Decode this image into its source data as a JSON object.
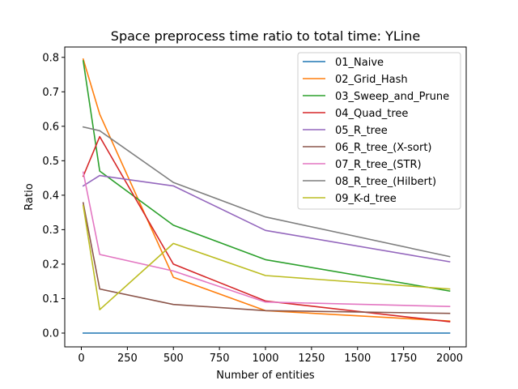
{
  "chart_data": {
    "type": "line",
    "title": "Space preprocess time ratio to total time: YLine",
    "xlabel": "Number of entities",
    "ylabel": "Ratio",
    "xlim": [
      -90,
      2090
    ],
    "ylim": [
      -0.04,
      0.83
    ],
    "x": [
      10,
      100,
      500,
      1000,
      2000
    ],
    "xticks": [
      0,
      250,
      500,
      750,
      1000,
      1250,
      1500,
      1750,
      2000
    ],
    "yticks": [
      0.0,
      0.1,
      0.2,
      0.3,
      0.4,
      0.5,
      0.6,
      0.7,
      0.8
    ],
    "xtick_labels": [
      "0",
      "250",
      "500",
      "750",
      "1000",
      "1250",
      "1500",
      "1750",
      "2000"
    ],
    "ytick_labels": [
      "0.0",
      "0.1",
      "0.2",
      "0.3",
      "0.4",
      "0.5",
      "0.6",
      "0.7",
      "0.8"
    ],
    "legend_position": "top-right",
    "grid": false,
    "series": [
      {
        "name": "01_Naive",
        "color": "#1f77b4",
        "values": [
          0.0,
          0.0,
          0.0,
          0.0,
          0.0
        ]
      },
      {
        "name": "02_Grid_Hash",
        "color": "#ff7f0e",
        "values": [
          0.795,
          0.635,
          0.162,
          0.065,
          0.035
        ]
      },
      {
        "name": "03_Sweep_and_Prune",
        "color": "#2ca02c",
        "values": [
          0.79,
          0.47,
          0.313,
          0.213,
          0.122
        ]
      },
      {
        "name": "04_Quad_tree",
        "color": "#d62728",
        "values": [
          0.455,
          0.57,
          0.2,
          0.093,
          0.033
        ]
      },
      {
        "name": "05_R_tree",
        "color": "#9467bd",
        "values": [
          0.427,
          0.457,
          0.427,
          0.298,
          0.207
        ]
      },
      {
        "name": "06_R_tree_(X-sort)",
        "color": "#8c564b",
        "values": [
          0.378,
          0.128,
          0.083,
          0.065,
          0.057
        ]
      },
      {
        "name": "07_R_tree_(STR)",
        "color": "#e377c2",
        "values": [
          0.467,
          0.228,
          0.18,
          0.09,
          0.077
        ]
      },
      {
        "name": "08_R_tree_(Hilbert)",
        "color": "#7f7f7f",
        "values": [
          0.598,
          0.587,
          0.437,
          0.337,
          0.222
        ]
      },
      {
        "name": "09_K-d_tree",
        "color": "#bcbd22",
        "values": [
          0.37,
          0.068,
          0.26,
          0.167,
          0.128
        ]
      }
    ]
  }
}
